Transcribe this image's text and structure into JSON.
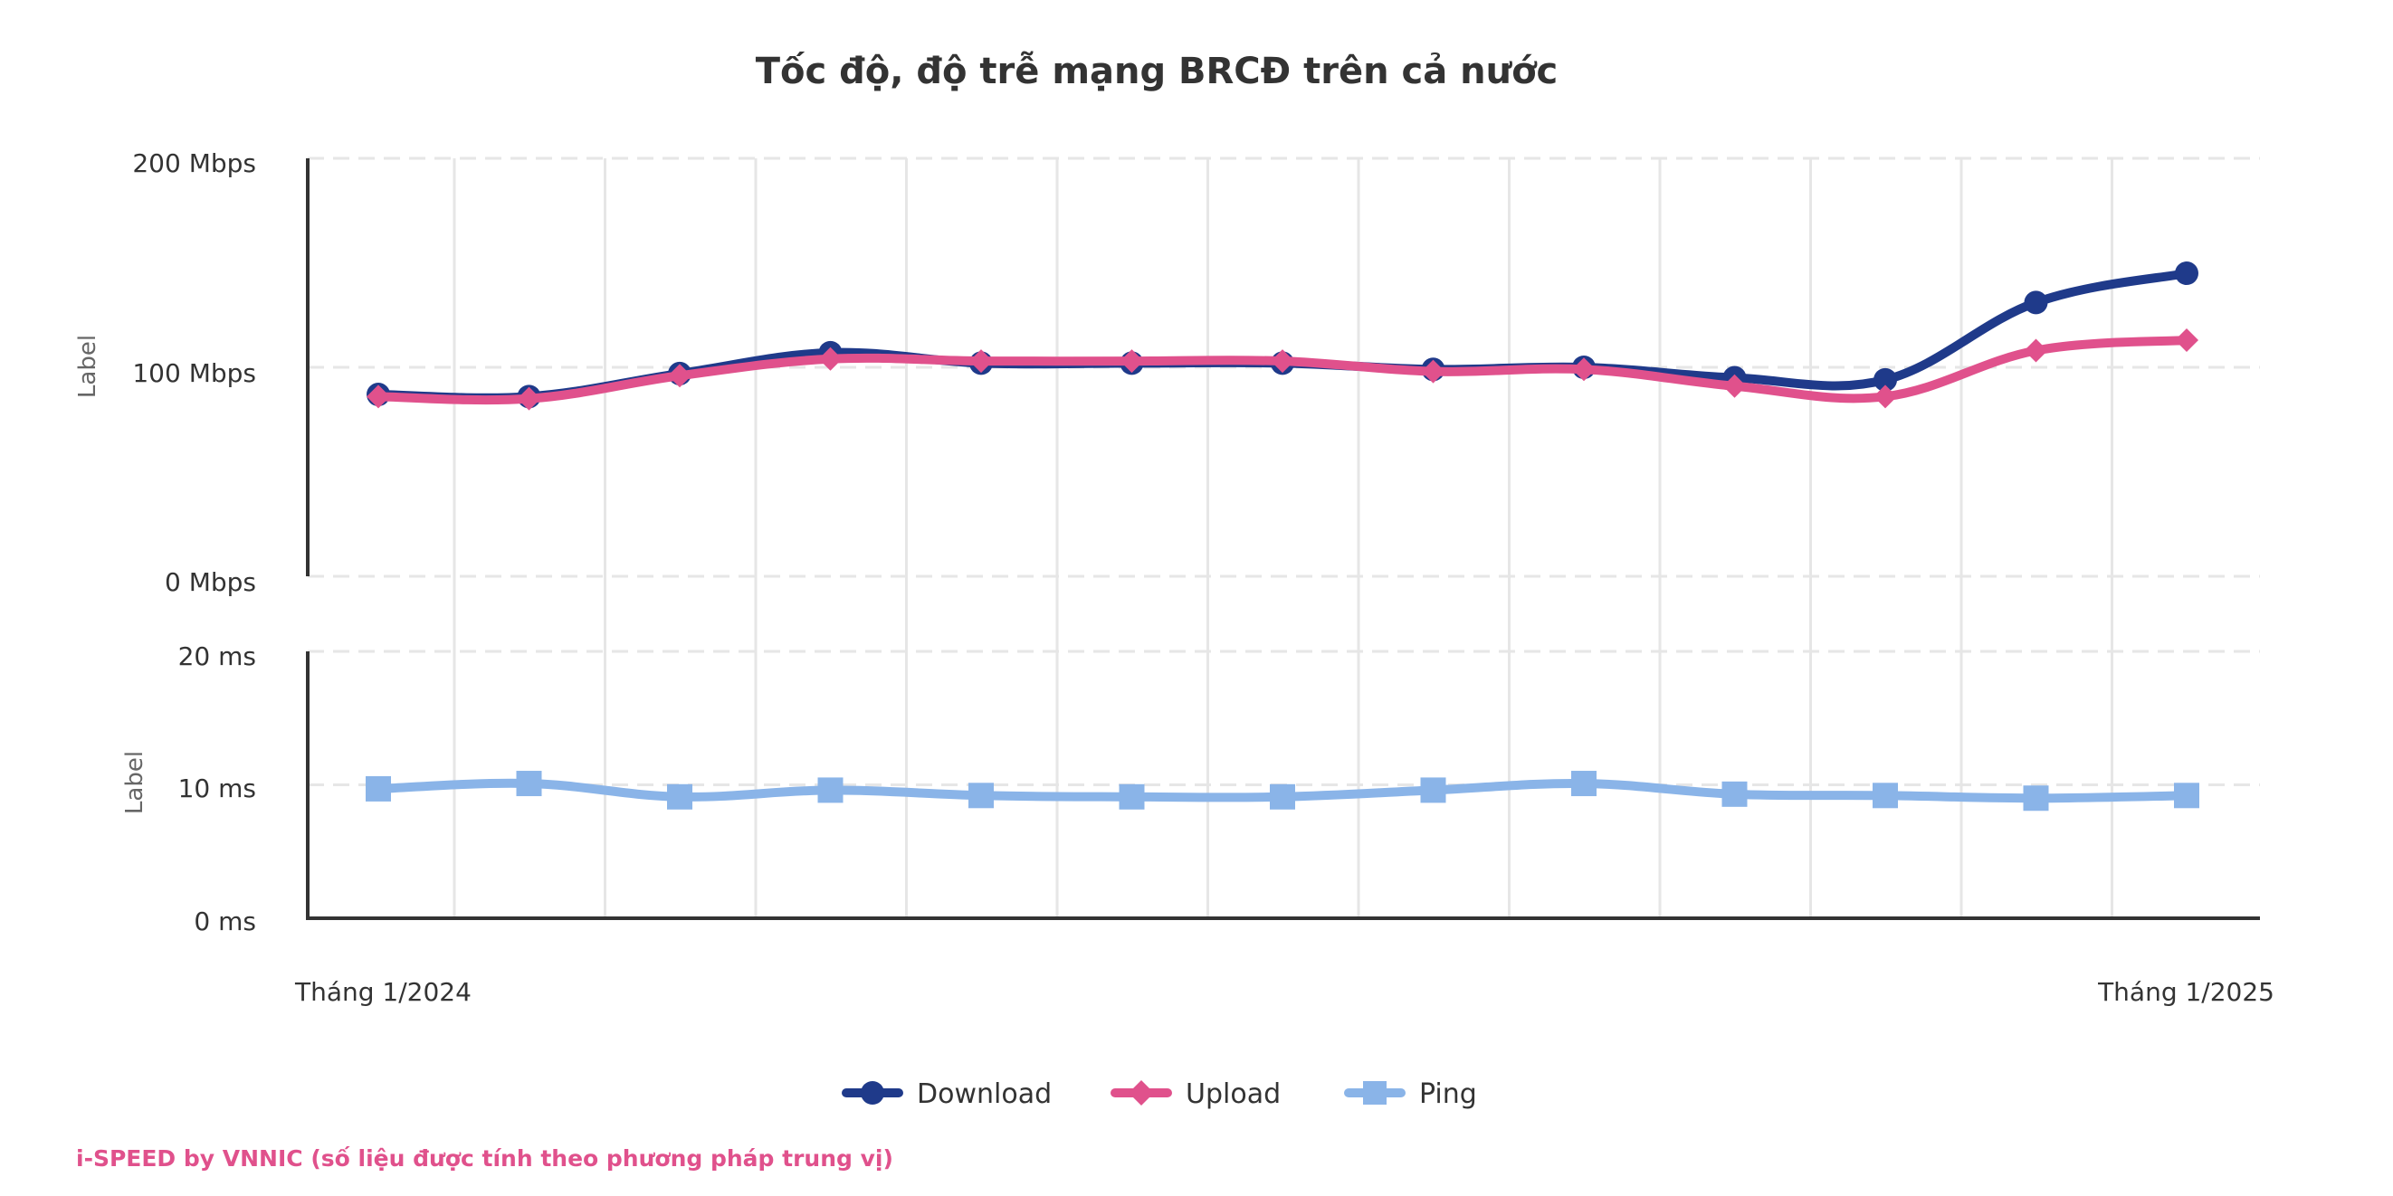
{
  "chart_data": {
    "type": "line",
    "title": "Tốc độ, độ trễ mạng BRCĐ trên cả nước",
    "x_labels": {
      "first": "Tháng 1/2024",
      "last": "Tháng 1/2025"
    },
    "speed_axis": {
      "label": "Label",
      "ylim": [
        0,
        200
      ],
      "ticks": [
        {
          "value": 0,
          "label": "0 Mbps"
        },
        {
          "value": 100,
          "label": "100 Mbps"
        },
        {
          "value": 200,
          "label": "200 Mbps"
        }
      ]
    },
    "latency_axis": {
      "label": "Label",
      "ylim": [
        0,
        20
      ],
      "ticks": [
        {
          "value": 0,
          "label": "0 ms"
        },
        {
          "value": 10,
          "label": "10 ms"
        },
        {
          "value": 20,
          "label": "20 ms"
        }
      ]
    },
    "series": [
      {
        "name": "Download",
        "axis": "speed",
        "color": "#1f3a8a",
        "marker": "circle",
        "values": [
          87,
          86,
          97,
          107,
          102,
          102,
          102,
          99,
          100,
          95,
          94,
          131,
          145
        ]
      },
      {
        "name": "Upload",
        "axis": "speed",
        "color": "#e0518c",
        "marker": "diamond",
        "values": [
          86,
          85,
          96,
          104,
          103,
          103,
          103,
          98,
          99,
          91,
          86,
          108,
          113
        ]
      },
      {
        "name": "Ping",
        "axis": "latency",
        "color": "#8ab4e8",
        "marker": "square",
        "values": [
          9.7,
          10.1,
          9.1,
          9.6,
          9.2,
          9.1,
          9.1,
          9.6,
          10.1,
          9.3,
          9.2,
          9.0,
          9.2
        ]
      }
    ]
  },
  "footer": {
    "source": "i-SPEED by VNNIC (số liệu được tính theo phương pháp trung vị)"
  }
}
